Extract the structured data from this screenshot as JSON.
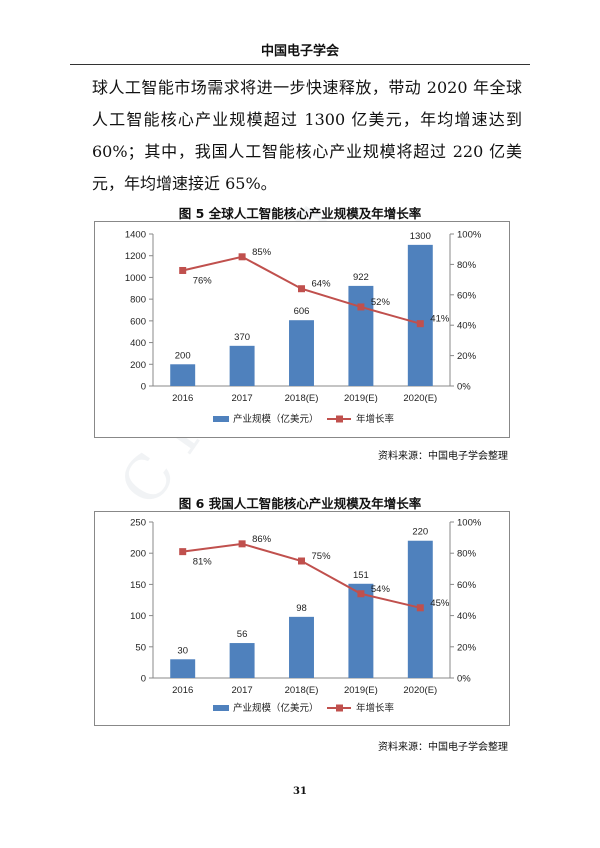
{
  "header": {
    "title": "中国电子学会"
  },
  "paragraph": "球人工智能市场需求将进一步快速释放，带动 2020 年全球人工智能核心产业规模超过 1300 亿美元，年均增速达到 60%；其中，我国人工智能核心产业规模将超过 220 亿美元，年均增速接近 65%。",
  "colors": {
    "bar": "#4f81bd",
    "line": "#c0504d"
  },
  "figures": [
    {
      "title": "图 5  全球人工智能核心产业规模及年增长率",
      "source": "资料来源：中国电子学会整理"
    },
    {
      "title": "图 6  我国人工智能核心产业规模及年增长率",
      "source": "资料来源：中国电子学会整理"
    }
  ],
  "chart_data": [
    {
      "type": "bar",
      "categories": [
        "2016",
        "2017",
        "2018(E)",
        "2019(E)",
        "2020(E)"
      ],
      "series": [
        {
          "name": "产业规模（亿美元）",
          "type": "bar",
          "values": [
            200,
            370,
            606,
            922,
            1300
          ],
          "labels": [
            "200",
            "370",
            "606",
            "922",
            "1300"
          ]
        },
        {
          "name": "年增长率",
          "type": "line",
          "axis": "right",
          "values": [
            76,
            85,
            64,
            52,
            41
          ],
          "labels": [
            "76%",
            "85%",
            "64%",
            "52%",
            "41%"
          ]
        }
      ],
      "left_axis": {
        "ylim": [
          0,
          1400
        ],
        "ticks": [
          "0",
          "200",
          "400",
          "600",
          "800",
          "1000",
          "1200",
          "1400"
        ]
      },
      "right_axis": {
        "ylim": [
          0,
          100
        ],
        "ticks": [
          "0%",
          "20%",
          "40%",
          "60%",
          "80%",
          "100%"
        ]
      }
    },
    {
      "type": "bar",
      "categories": [
        "2016",
        "2017",
        "2018(E)",
        "2019(E)",
        "2020(E)"
      ],
      "series": [
        {
          "name": "产业规模（亿美元）",
          "type": "bar",
          "values": [
            30,
            56,
            98,
            151,
            220
          ],
          "labels": [
            "30",
            "56",
            "98",
            "151",
            "220"
          ]
        },
        {
          "name": "年增长率",
          "type": "line",
          "axis": "right",
          "values": [
            81,
            86,
            75,
            54,
            45
          ],
          "labels": [
            "81%",
            "86%",
            "75%",
            "54%",
            "45%"
          ]
        }
      ],
      "left_axis": {
        "ylim": [
          0,
          250
        ],
        "ticks": [
          "0",
          "50",
          "100",
          "150",
          "200",
          "250"
        ]
      },
      "right_axis": {
        "ylim": [
          0,
          100
        ],
        "ticks": [
          "0%",
          "20%",
          "40%",
          "60%",
          "80%",
          "100%"
        ]
      }
    }
  ],
  "page_number": "31"
}
